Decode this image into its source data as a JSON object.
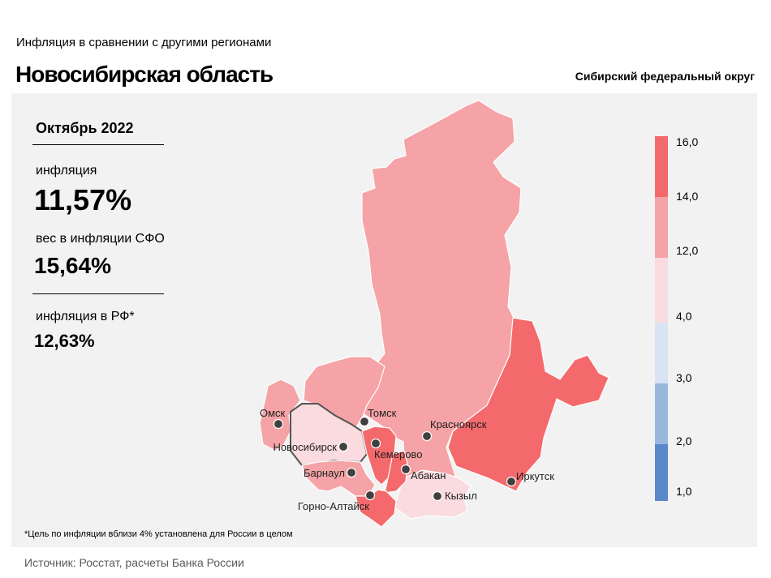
{
  "header": {
    "supertitle": "Инфляция в сравнении с другими регионами",
    "title": "Новосибирская область",
    "district": "Сибирский федеральный округ"
  },
  "stats": {
    "period": "Октябрь 2022",
    "inflation_label": "инфляция",
    "inflation_value": "11,57%",
    "weight_label": "вес в инфляции СФО",
    "weight_value": "15,64%",
    "rf_label": "инфляция в РФ*",
    "rf_value": "12,63%"
  },
  "footnote": "*Цель по инфляции вблизи 4% установлена для России в целом",
  "source": "Источник: Росстат, расчеты Банка России",
  "cities": {
    "omsk": "Омск",
    "tomsk": "Томск",
    "novosibirsk": "Новосибирск",
    "krasnoyarsk": "Красноярск",
    "kemerovo": "Кемерово",
    "abakan": "Абакан",
    "barnaul": "Барнаул",
    "kyzyl": "Кызыл",
    "irkutsk": "Иркутск",
    "gorno_altaysk": "Горно-Алтайск"
  },
  "legend": {
    "labels": [
      "16,0",
      "14,0",
      "12,0",
      "4,0",
      "3,0",
      "2,0",
      "1,0"
    ],
    "bins": [
      {
        "from": 14.0,
        "to": 16.0,
        "color": "#f4696b"
      },
      {
        "from": 12.0,
        "to": 14.0,
        "color": "#f5a3a6"
      },
      {
        "from": 4.0,
        "to": 12.0,
        "color": "#fadbdf"
      },
      {
        "from": 3.0,
        "to": 4.0,
        "color": "#d9e3f4"
      },
      {
        "from": 2.0,
        "to": 3.0,
        "color": "#99b8de"
      },
      {
        "from": 1.0,
        "to": 2.0,
        "color": "#5b88c8"
      }
    ]
  },
  "colors": {
    "high": "#f4696b",
    "mid": "#f5a3a6",
    "low": "#fadbdf",
    "panel": "#f2f2f2"
  }
}
